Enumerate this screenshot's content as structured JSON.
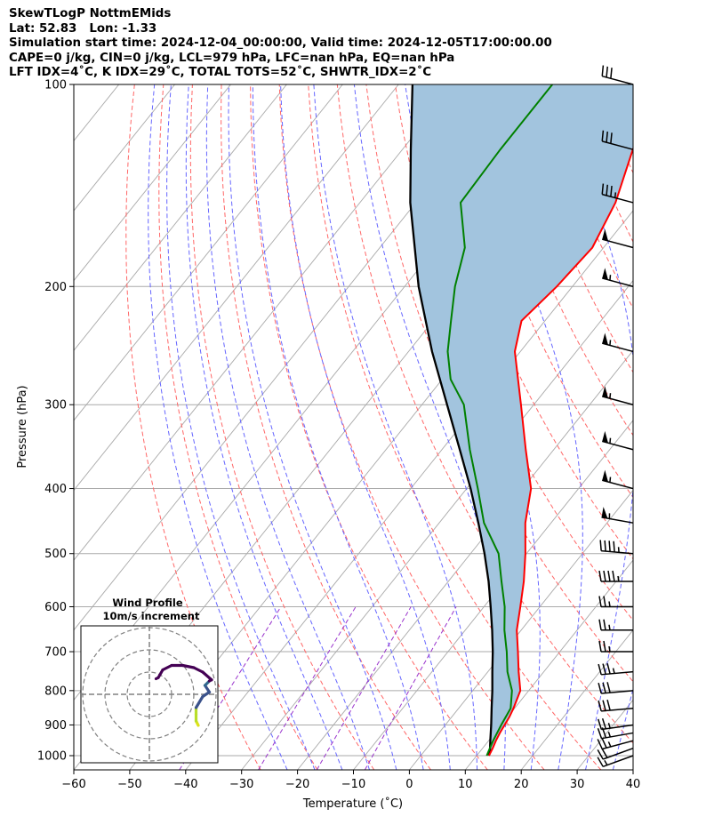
{
  "header": {
    "line1": "SkewTLogP NottmEMids",
    "line2": "Lat: 52.83   Lon: -1.33",
    "line3": "Simulation start time: 2024-12-04_00:00:00, Valid time: 2024-12-05T17:00:00.00",
    "line4": "CAPE=0 j/kg, CIN=0 j/kg, LCL=979 hPa, LFC=nan hPa, EQ=nan hPa",
    "line5": "LFT IDX=4˚C, K IDX=29˚C, TOTAL TOTS=52˚C, SHWTR_IDX=2˚C"
  },
  "chart_data": {
    "type": "skew-t log-p",
    "xlabel": "Temperature (˚C)",
    "ylabel": "Pressure (hPa)",
    "xlim": [
      -60,
      40
    ],
    "ylim": [
      1050,
      100
    ],
    "xticks": [
      "−60",
      "−50",
      "−40",
      "−30",
      "−20",
      "−10",
      "0",
      "10",
      "20",
      "30",
      "40"
    ],
    "yticks": [
      "100",
      "200",
      "300",
      "400",
      "500",
      "600",
      "700",
      "800",
      "900",
      "1000"
    ],
    "colors": {
      "temperature": "#ff0000",
      "dewpoint": "#008000",
      "parcel": "#000000",
      "shading": "#a2c4de",
      "dry_adiabats": "#ff6666",
      "moist_adiabats": "#6666ff",
      "mixing_ratio": "#9933cc",
      "isotherms": "#aaaaaa"
    },
    "temperature_profile": [
      {
        "p": 1000,
        "t": 12.2
      },
      {
        "p": 975,
        "t": 11.8
      },
      {
        "p": 950,
        "t": 11.3
      },
      {
        "p": 925,
        "t": 10.9
      },
      {
        "p": 900,
        "t": 10.6
      },
      {
        "p": 875,
        "t": 10.3
      },
      {
        "p": 850,
        "t": 9.8
      },
      {
        "p": 800,
        "t": 8.5
      },
      {
        "p": 750,
        "t": 5.5
      },
      {
        "p": 700,
        "t": 2.5
      },
      {
        "p": 650,
        "t": -0.8
      },
      {
        "p": 600,
        "t": -3.5
      },
      {
        "p": 550,
        "t": -6.5
      },
      {
        "p": 500,
        "t": -10.2
      },
      {
        "p": 450,
        "t": -14.6
      },
      {
        "p": 400,
        "t": -18.5
      },
      {
        "p": 350,
        "t": -25.0
      },
      {
        "p": 300,
        "t": -32.3
      },
      {
        "p": 250,
        "t": -41.0
      },
      {
        "p": 225,
        "t": -44.2
      },
      {
        "p": 200,
        "t": -42.8
      },
      {
        "p": 175,
        "t": -42.0
      },
      {
        "p": 150,
        "t": -44.3
      },
      {
        "p": 125,
        "t": -48.8
      },
      {
        "p": 100,
        "t": -53.0
      }
    ],
    "dewpoint_profile": [
      {
        "p": 1000,
        "t": 11.8
      },
      {
        "p": 975,
        "t": 11.3
      },
      {
        "p": 950,
        "t": 10.8
      },
      {
        "p": 900,
        "t": 10.0
      },
      {
        "p": 850,
        "t": 9.3
      },
      {
        "p": 800,
        "t": 7.0
      },
      {
        "p": 750,
        "t": 3.5
      },
      {
        "p": 700,
        "t": 0.5
      },
      {
        "p": 650,
        "t": -3.0
      },
      {
        "p": 600,
        "t": -6.3
      },
      {
        "p": 550,
        "t": -10.5
      },
      {
        "p": 500,
        "t": -15.0
      },
      {
        "p": 450,
        "t": -22.0
      },
      {
        "p": 400,
        "t": -28.0
      },
      {
        "p": 350,
        "t": -35.0
      },
      {
        "p": 300,
        "t": -42.5
      },
      {
        "p": 275,
        "t": -48.5
      },
      {
        "p": 250,
        "t": -53.0
      },
      {
        "p": 225,
        "t": -56.8
      },
      {
        "p": 200,
        "t": -61.0
      },
      {
        "p": 175,
        "t": -64.8
      },
      {
        "p": 150,
        "t": -72.0
      },
      {
        "p": 125,
        "t": -72.5
      },
      {
        "p": 100,
        "t": -72.5
      }
    ],
    "parcel_profile": [
      {
        "p": 1000,
        "t": 12.2
      },
      {
        "p": 979,
        "t": 11.5
      },
      {
        "p": 950,
        "t": 10.3
      },
      {
        "p": 900,
        "t": 8.2
      },
      {
        "p": 850,
        "t": 5.9
      },
      {
        "p": 800,
        "t": 3.5
      },
      {
        "p": 750,
        "t": 0.8
      },
      {
        "p": 700,
        "t": -2.0
      },
      {
        "p": 650,
        "t": -5.2
      },
      {
        "p": 600,
        "t": -8.8
      },
      {
        "p": 550,
        "t": -12.8
      },
      {
        "p": 500,
        "t": -17.5
      },
      {
        "p": 450,
        "t": -23.0
      },
      {
        "p": 400,
        "t": -29.3
      },
      {
        "p": 350,
        "t": -36.8
      },
      {
        "p": 300,
        "t": -45.5
      },
      {
        "p": 250,
        "t": -55.8
      },
      {
        "p": 200,
        "t": -67.5
      },
      {
        "p": 150,
        "t": -81.0
      },
      {
        "p": 125,
        "t": -88.5
      },
      {
        "p": 100,
        "t": -97.5
      }
    ],
    "wind_barbs": [
      {
        "p": 1000,
        "dir": 250,
        "kt": 15
      },
      {
        "p": 975,
        "dir": 250,
        "kt": 20
      },
      {
        "p": 950,
        "dir": 255,
        "kt": 25
      },
      {
        "p": 925,
        "dir": 260,
        "kt": 25
      },
      {
        "p": 900,
        "dir": 262,
        "kt": 25
      },
      {
        "p": 850,
        "dir": 265,
        "kt": 30
      },
      {
        "p": 800,
        "dir": 265,
        "kt": 30
      },
      {
        "p": 750,
        "dir": 265,
        "kt": 35
      },
      {
        "p": 700,
        "dir": 270,
        "kt": 25
      },
      {
        "p": 650,
        "dir": 270,
        "kt": 25
      },
      {
        "p": 600,
        "dir": 270,
        "kt": 25
      },
      {
        "p": 550,
        "dir": 270,
        "kt": 45
      },
      {
        "p": 500,
        "dir": 275,
        "kt": 45
      },
      {
        "p": 450,
        "dir": 280,
        "kt": 55
      },
      {
        "p": 400,
        "dir": 285,
        "kt": 55
      },
      {
        "p": 350,
        "dir": 285,
        "kt": 55
      },
      {
        "p": 300,
        "dir": 285,
        "kt": 55
      },
      {
        "p": 250,
        "dir": 285,
        "kt": 55
      },
      {
        "p": 200,
        "dir": 285,
        "kt": 55
      },
      {
        "p": 175,
        "dir": 285,
        "kt": 50
      },
      {
        "p": 150,
        "dir": 285,
        "kt": 35
      },
      {
        "p": 125,
        "dir": 285,
        "kt": 30
      },
      {
        "p": 100,
        "dir": 285,
        "kt": 30
      }
    ],
    "inset": {
      "title": "Wind Profile",
      "subtitle": "10m/s increment",
      "rings_ms": [
        10,
        20,
        30
      ],
      "hodograph": [
        {
          "u": 22,
          "v": -14,
          "c": "#dde318"
        },
        {
          "u": 21,
          "v": -12,
          "c": "#dde318"
        },
        {
          "u": 21,
          "v": -9,
          "c": "#b8de29"
        },
        {
          "u": 21,
          "v": -6,
          "c": "#b8de29"
        },
        {
          "u": 24,
          "v": -1,
          "c": "#3b528b"
        },
        {
          "u": 27,
          "v": 1,
          "c": "#3b528b"
        },
        {
          "u": 25,
          "v": 4,
          "c": "#3b528b"
        },
        {
          "u": 27,
          "v": 6,
          "c": "#31688e"
        },
        {
          "u": 28,
          "v": 6.5,
          "c": "#440154"
        },
        {
          "u": 24,
          "v": 10,
          "c": "#440154"
        },
        {
          "u": 20,
          "v": 12,
          "c": "#440154"
        },
        {
          "u": 15,
          "v": 13,
          "c": "#440154"
        },
        {
          "u": 10,
          "v": 13,
          "c": "#440154"
        },
        {
          "u": 6,
          "v": 11,
          "c": "#440154"
        },
        {
          "u": 4,
          "v": 7.5,
          "c": "#440154"
        },
        {
          "u": 3,
          "v": 7,
          "c": "#440154"
        }
      ]
    }
  }
}
